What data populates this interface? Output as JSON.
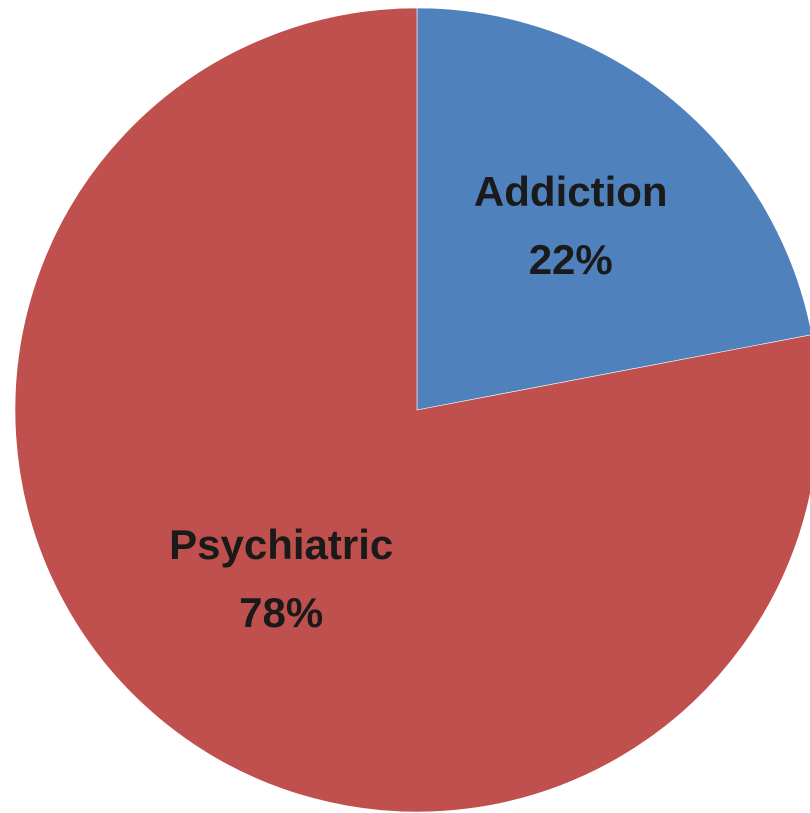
{
  "chart_data": {
    "type": "pie",
    "title": "",
    "categories": [
      "Addiction",
      "Psychiatric"
    ],
    "values": [
      22,
      78
    ],
    "percent_labels": [
      "22%",
      "78%"
    ],
    "colors": [
      "#4f81bd",
      "#c0504d"
    ],
    "start": "12 o'clock",
    "direction": "clockwise",
    "legend": "none",
    "data_labels": "inside slices (category name and percentage)"
  }
}
